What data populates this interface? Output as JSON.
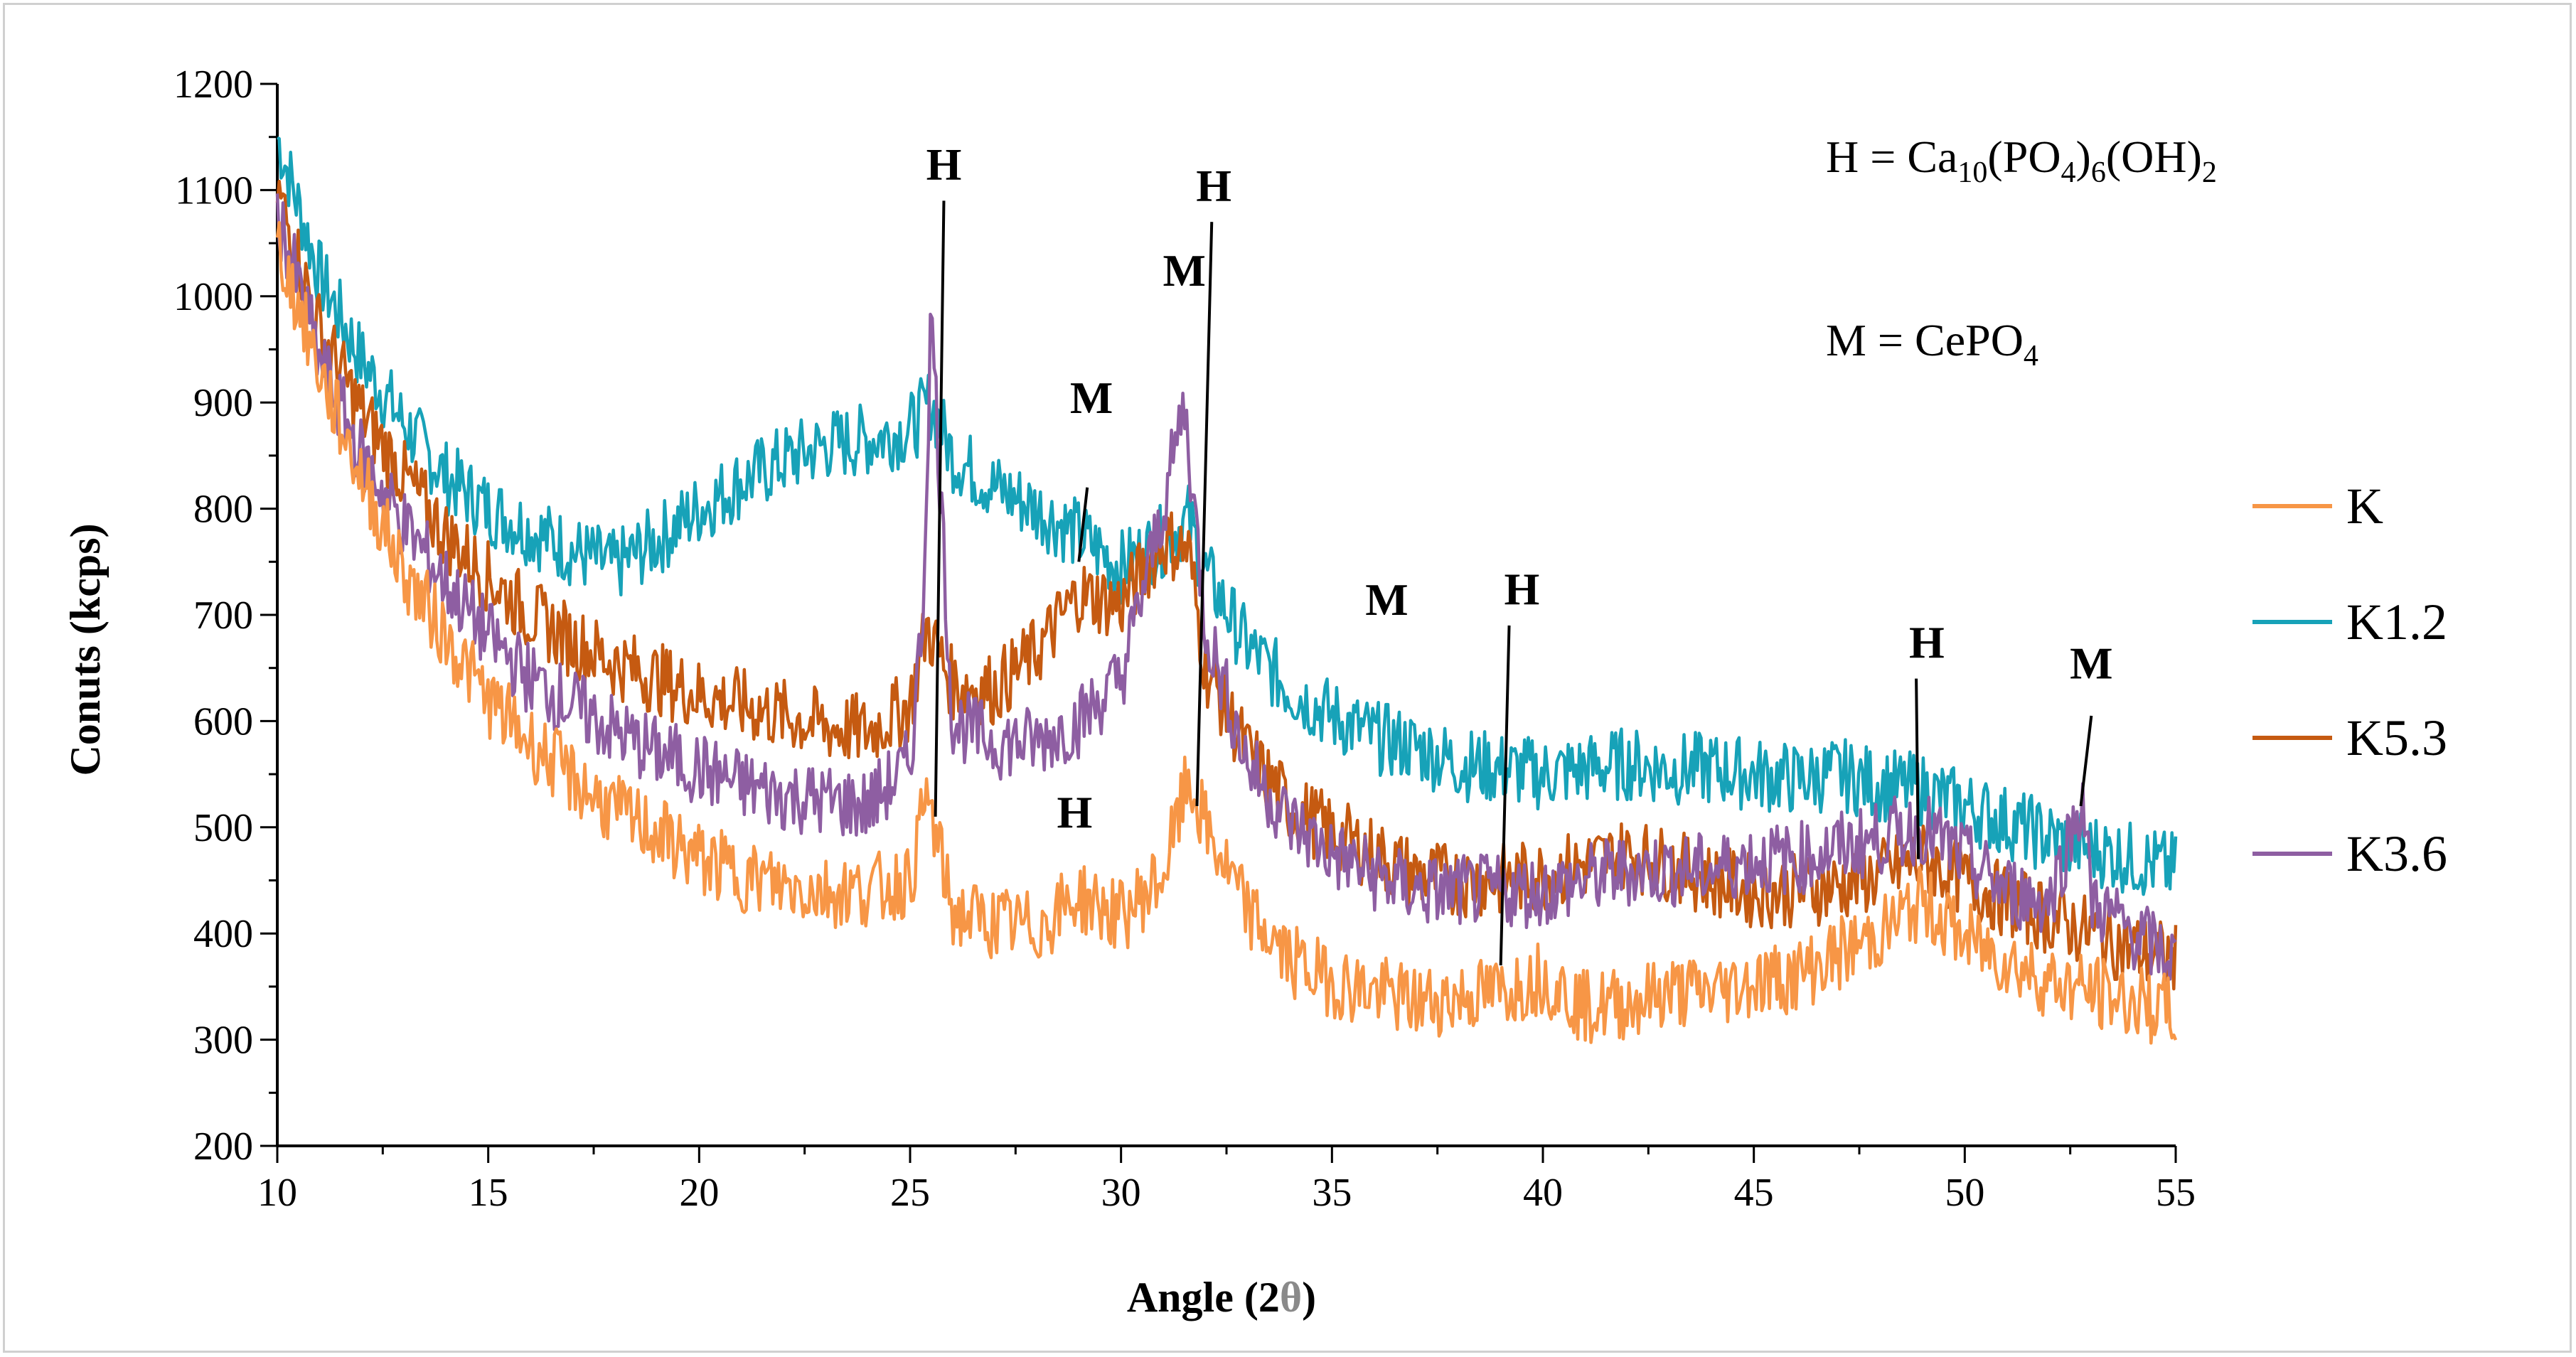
{
  "chart_data": {
    "type": "line",
    "title": "",
    "xlabel": "Angle (2",
    "xlabel_symbol": "θ",
    "xlabel_close": ")",
    "ylabel": "Conuts (kcps)",
    "xlim": [
      10,
      55
    ],
    "ylim": [
      200,
      1200
    ],
    "xticks": [
      10,
      15,
      20,
      25,
      30,
      35,
      40,
      45,
      50,
      55
    ],
    "yticks": [
      200,
      300,
      400,
      500,
      600,
      700,
      800,
      900,
      1000,
      1100,
      1200
    ],
    "grid": false,
    "legend_position": "right",
    "series": [
      {
        "name": "K",
        "color": "#F79646",
        "x": [
          10,
          11,
          12,
          13,
          14,
          15,
          16,
          17,
          18,
          19,
          20,
          21,
          22,
          23,
          24,
          25,
          25.4,
          26,
          27,
          28,
          29,
          30,
          31,
          31.6,
          32,
          33,
          34,
          35,
          36,
          37,
          38,
          39,
          40,
          41,
          42,
          43,
          44,
          45,
          46,
          47,
          48,
          49,
          50,
          51,
          52,
          53,
          54,
          55
        ],
        "y": [
          1050,
          930,
          830,
          740,
          680,
          620,
          580,
          545,
          515,
          495,
          470,
          455,
          445,
          440,
          440,
          450,
          530,
          420,
          410,
          405,
          435,
          415,
          455,
          545,
          500,
          420,
          375,
          355,
          345,
          335,
          340,
          345,
          360,
          330,
          335,
          345,
          345,
          355,
          360,
          380,
          400,
          430,
          395,
          375,
          355,
          345,
          335,
          325
        ]
      },
      {
        "name": "K1.2",
        "color": "#17A2B8",
        "x": [
          10,
          11,
          12,
          13,
          14,
          15,
          16,
          17,
          18,
          19,
          20,
          21,
          22,
          23,
          24,
          25,
          25.5,
          26,
          27,
          28,
          29,
          30,
          31,
          31.6,
          32,
          33,
          34,
          35,
          36,
          37,
          38,
          39,
          40,
          41,
          42,
          43,
          44,
          45,
          46,
          47,
          48,
          49,
          50,
          51,
          52,
          53,
          54,
          55
        ],
        "y": [
          1150,
          1020,
          940,
          880,
          830,
          800,
          780,
          760,
          745,
          770,
          800,
          825,
          845,
          860,
          865,
          875,
          900,
          850,
          820,
          800,
          775,
          745,
          770,
          790,
          740,
          670,
          630,
          605,
          585,
          575,
          560,
          555,
          550,
          555,
          560,
          555,
          555,
          550,
          545,
          550,
          540,
          535,
          520,
          505,
          490,
          480,
          470,
          460
        ]
      },
      {
        "name": "K5.3",
        "color": "#C55A11",
        "x": [
          10,
          11,
          12,
          13,
          14,
          15,
          16,
          17,
          18,
          19,
          20,
          21,
          22,
          23,
          24,
          25,
          25.4,
          26,
          27,
          28,
          29,
          29.5,
          30,
          31,
          31.6,
          32,
          33,
          34,
          35,
          36,
          37,
          38,
          39,
          40,
          41,
          42,
          43,
          44,
          45,
          46,
          47,
          48,
          49,
          50,
          51,
          52,
          53,
          54,
          55
        ],
        "y": [
          1100,
          970,
          890,
          830,
          775,
          735,
          700,
          675,
          655,
          640,
          625,
          615,
          605,
          595,
          590,
          615,
          690,
          635,
          630,
          665,
          720,
          715,
          710,
          770,
          760,
          650,
          570,
          520,
          495,
          475,
          455,
          450,
          450,
          455,
          465,
          475,
          465,
          450,
          440,
          440,
          445,
          455,
          470,
          450,
          430,
          415,
          400,
          385,
          375
        ]
      },
      {
        "name": "K3.6",
        "color": "#8E5EA2",
        "x": [
          10,
          11,
          12,
          13,
          14,
          15,
          16,
          17,
          18,
          19,
          20,
          21,
          22,
          23,
          24,
          25,
          25.3,
          25.5,
          26,
          27,
          28,
          29,
          30,
          31,
          31.5,
          32,
          33,
          34,
          35,
          36,
          37,
          38,
          39,
          40,
          41,
          42,
          43,
          44,
          45,
          46,
          47,
          48,
          49,
          50,
          51,
          52,
          52.8,
          53,
          54,
          55
        ],
        "y": [
          1080,
          940,
          850,
          785,
          730,
          680,
          640,
          615,
          590,
          570,
          555,
          540,
          530,
          525,
          520,
          560,
          700,
          990,
          600,
          580,
          580,
          600,
          640,
          800,
          900,
          690,
          560,
          505,
          475,
          455,
          440,
          440,
          440,
          440,
          450,
          460,
          460,
          460,
          470,
          470,
          480,
          490,
          500,
          470,
          440,
          430,
          530,
          430,
          400,
          375
        ]
      }
    ],
    "annotations": [
      {
        "text": "H",
        "x": 25.8,
        "y": 1110
      },
      {
        "text": "H",
        "x": 32.2,
        "y": 1090
      },
      {
        "text": "M",
        "x": 31.5,
        "y": 1010
      },
      {
        "text": "M",
        "x": 29.3,
        "y": 890
      },
      {
        "text": "M",
        "x": 36.3,
        "y": 700
      },
      {
        "text": "H",
        "x": 39.5,
        "y": 710
      },
      {
        "text": "H",
        "x": 49.1,
        "y": 660
      },
      {
        "text": "M",
        "x": 53.0,
        "y": 640
      },
      {
        "text": "H",
        "x": 28.9,
        "y": 500
      }
    ],
    "legend_formulas": [
      {
        "parts": [
          "H = Ca",
          "10",
          "(PO",
          "4",
          ")",
          "6",
          "(OH)",
          "2"
        ]
      },
      {
        "parts": [
          "M = CePO",
          "4"
        ]
      }
    ]
  }
}
